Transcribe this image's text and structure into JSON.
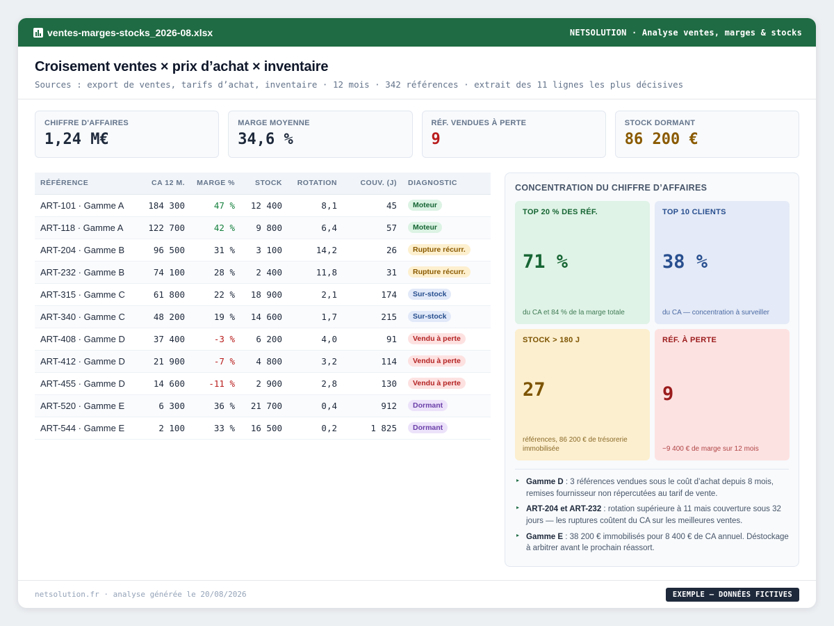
{
  "window": {
    "file_name": "ventes-marges-stocks_2026-08.xlsx",
    "app_info": "NETSOLUTION · Analyse ventes, marges & stocks"
  },
  "header": {
    "title": "Croisement ventes × prix d’achat × inventaire",
    "subtitle": "Sources : export de ventes, tarifs d’achat, inventaire · 12 mois · 342 références · extrait des 11 lignes les plus décisives"
  },
  "kpis": [
    {
      "label": "CHIFFRE D'AFFAIRES",
      "value": "1,24 M€",
      "color": "#1e293b"
    },
    {
      "label": "MARGE MOYENNE",
      "value": "34,6 %",
      "color": "#1e293b"
    },
    {
      "label": "RÉF. VENDUES À PERTE",
      "value": "9",
      "color": "#b91c1c"
    },
    {
      "label": "STOCK DORMANT",
      "value": "86 200 €",
      "color": "#8a5a00"
    }
  ],
  "table": {
    "headers": [
      "RÉFÉRENCE",
      "CA 12 M.",
      "MARGE %",
      "STOCK",
      "ROTATION",
      "COUV. (J)",
      "DIAGNOSTIC"
    ],
    "rows": [
      {
        "ref": "ART-101 · Gamme A",
        "ca": "184 300",
        "marge": "47 %",
        "stock": "12 400",
        "rotation": "8,1",
        "couv": "45",
        "diag": "Moteur",
        "kind": "moteur",
        "marge_color": "#15803d"
      },
      {
        "ref": "ART-118 · Gamme A",
        "ca": "122 700",
        "marge": "42 %",
        "stock": "9 800",
        "rotation": "6,4",
        "couv": "57",
        "diag": "Moteur",
        "kind": "moteur",
        "marge_color": "#15803d"
      },
      {
        "ref": "ART-204 · Gamme B",
        "ca": "96 500",
        "marge": "31 %",
        "stock": "3 100",
        "rotation": "14,2",
        "couv": "26",
        "diag": "Rupture récurr.",
        "kind": "rupture",
        "marge_color": "#1e293b"
      },
      {
        "ref": "ART-232 · Gamme B",
        "ca": "74 100",
        "marge": "28 %",
        "stock": "2 400",
        "rotation": "11,8",
        "couv": "31",
        "diag": "Rupture récurr.",
        "kind": "rupture",
        "marge_color": "#1e293b"
      },
      {
        "ref": "ART-315 · Gamme C",
        "ca": "61 800",
        "marge": "22 %",
        "stock": "18 900",
        "rotation": "2,1",
        "couv": "174",
        "diag": "Sur-stock",
        "kind": "surstock",
        "marge_color": "#1e293b"
      },
      {
        "ref": "ART-340 · Gamme C",
        "ca": "48 200",
        "marge": "19 %",
        "stock": "14 600",
        "rotation": "1,7",
        "couv": "215",
        "diag": "Sur-stock",
        "kind": "surstock",
        "marge_color": "#1e293b"
      },
      {
        "ref": "ART-408 · Gamme D",
        "ca": "37 400",
        "marge": "-3 %",
        "stock": "6 200",
        "rotation": "4,0",
        "couv": "91",
        "diag": "Vendu à perte",
        "kind": "perte",
        "marge_color": "#b91c1c"
      },
      {
        "ref": "ART-412 · Gamme D",
        "ca": "21 900",
        "marge": "-7 %",
        "stock": "4 800",
        "rotation": "3,2",
        "couv": "114",
        "diag": "Vendu à perte",
        "kind": "perte",
        "marge_color": "#b91c1c"
      },
      {
        "ref": "ART-455 · Gamme D",
        "ca": "14 600",
        "marge": "-11 %",
        "stock": "2 900",
        "rotation": "2,8",
        "couv": "130",
        "diag": "Vendu à perte",
        "kind": "perte",
        "marge_color": "#b91c1c"
      },
      {
        "ref": "ART-520 · Gamme E",
        "ca": "6 300",
        "marge": "36 %",
        "stock": "21 700",
        "rotation": "0,4",
        "couv": "912",
        "diag": "Dormant",
        "kind": "dormant",
        "marge_color": "#1e293b"
      },
      {
        "ref": "ART-544 · Gamme E",
        "ca": "2 100",
        "marge": "33 %",
        "stock": "16 500",
        "rotation": "0,2",
        "couv": "1 825",
        "diag": "Dormant",
        "kind": "dormant",
        "marge_color": "#1e293b"
      }
    ],
    "badge_colors": {
      "moteur": {
        "bg": "#dcf3e4",
        "fg": "#166534"
      },
      "rupture": {
        "bg": "#fdf0cf",
        "fg": "#8a5a00"
      },
      "surstock": {
        "bg": "#e2e9f8",
        "fg": "#284f8f"
      },
      "perte": {
        "bg": "#fde1e1",
        "fg": "#b42323"
      },
      "dormant": {
        "bg": "#ece3fa",
        "fg": "#6b3fa8"
      }
    }
  },
  "panel": {
    "title": "CONCENTRATION DU CHIFFRE D’AFFAIRES",
    "tiles": [
      {
        "label": "TOP 20 % DES RÉF.",
        "value": "71 %",
        "note": "du CA et 84 % de la marge totale",
        "bg": "#dff3e6",
        "fg": "#166534",
        "note_color": "#3f7a55"
      },
      {
        "label": "TOP 10 CLIENTS",
        "value": "38 %",
        "note": "du CA — concentration à surveiller",
        "bg": "#e4eaf7",
        "fg": "#284f8f",
        "note_color": "#4b6aa3"
      },
      {
        "label": "STOCK > 180 J",
        "value": "27",
        "note": "références, 86 200 € de trésorerie immobilisée",
        "bg": "#fcefcf",
        "fg": "#7c5300",
        "note_color": "#8a6a2a"
      },
      {
        "label": "RÉF. À PERTE",
        "value": "9",
        "note": "−9 400 € de marge sur 12 mois",
        "bg": "#fde2e2",
        "fg": "#9b1c1c",
        "note_color": "#b04545"
      }
    ],
    "notes": [
      {
        "bold": "Gamme D",
        "text": " : 3 références vendues sous le coût d’achat depuis 8 mois, remises fournisseur non répercutées au tarif de vente."
      },
      {
        "bold": "ART-204 et ART-232",
        "text": " : rotation supérieure à 11 mais couverture sous 32 jours — les ruptures coûtent du CA sur les meilleures ventes."
      },
      {
        "bold": "Gamme E",
        "text": " : 38 200 € immobilisés pour 8 400 € de CA annuel. Déstockage à arbitrer avant le prochain réassort."
      }
    ]
  },
  "footer": {
    "left": "netsolution.fr · analyse générée le 20/08/2026",
    "stamp": "EXEMPLE — DONNÉES FICTIVES"
  }
}
